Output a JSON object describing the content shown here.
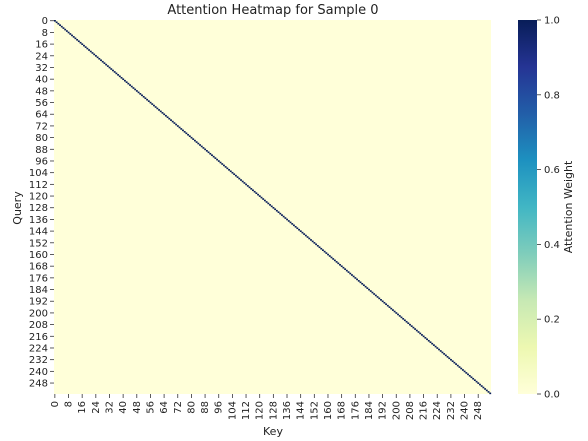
{
  "chart_data": {
    "type": "heatmap",
    "title": "Attention Heatmap for Sample 0",
    "xlabel": "Key",
    "ylabel": "Query",
    "n": 256,
    "x_ticks": [
      0,
      8,
      16,
      24,
      32,
      40,
      48,
      56,
      64,
      72,
      80,
      88,
      96,
      104,
      112,
      120,
      128,
      136,
      144,
      152,
      160,
      168,
      176,
      184,
      192,
      200,
      208,
      216,
      224,
      232,
      240,
      248
    ],
    "y_ticks": [
      0,
      8,
      16,
      24,
      32,
      40,
      48,
      56,
      64,
      72,
      80,
      88,
      96,
      104,
      112,
      120,
      128,
      136,
      144,
      152,
      160,
      168,
      176,
      184,
      192,
      200,
      208,
      216,
      224,
      232,
      240,
      248
    ],
    "pattern": "diagonal",
    "diagonal_value": 1.0,
    "off_diagonal_value": 0.0,
    "colorbar": {
      "label": "Attention Weight",
      "min": 0.0,
      "max": 1.0,
      "ticks": [
        "0.0",
        "0.2",
        "0.4",
        "0.6",
        "0.8",
        "1.0"
      ],
      "colormap": "YlGnBu",
      "stops": [
        "#ffffd9",
        "#edf8b1",
        "#c7e9b4",
        "#7fcdbb",
        "#41b6c4",
        "#1d91c0",
        "#225ea8",
        "#253494",
        "#081d58"
      ]
    }
  }
}
